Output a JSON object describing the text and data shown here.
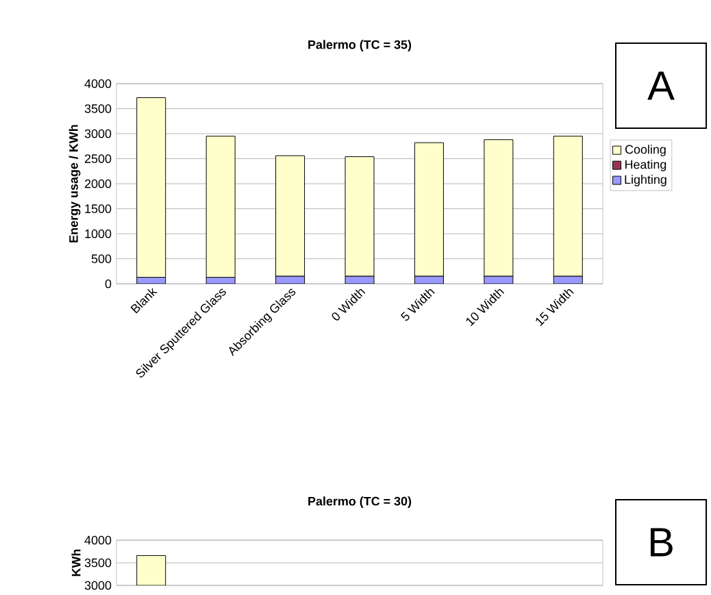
{
  "chart_data": [
    {
      "type": "bar",
      "title": "Palermo (TC = 35)",
      "ylabel": "Energy usage / KWh",
      "annotations": [
        "A"
      ],
      "categories": [
        "Blank",
        "Silver Sputtered Glass",
        "Absorbing Glass",
        "0 Width",
        "5 Width",
        "10 Width",
        "15 Width"
      ],
      "stacked": true,
      "series": [
        {
          "name": "Lighting",
          "color": "#9999ff",
          "values": [
            130,
            130,
            150,
            150,
            150,
            150,
            150
          ]
        },
        {
          "name": "Heating",
          "color": "#993355",
          "values": [
            0,
            0,
            0,
            0,
            0,
            0,
            0
          ]
        },
        {
          "name": "Cooling",
          "color": "#ffffcc",
          "values": [
            3590,
            2820,
            2410,
            2390,
            2670,
            2730,
            2800
          ]
        }
      ],
      "ylim": [
        0,
        4000
      ],
      "yticks": [
        0,
        500,
        1000,
        1500,
        2000,
        2500,
        3000,
        3500,
        4000
      ],
      "grid": "y",
      "legend": "right"
    },
    {
      "type": "bar",
      "title": "Palermo (TC = 30)",
      "ylabel": "KWh",
      "annotations": [
        "B"
      ],
      "categories": [
        null,
        null,
        null,
        null,
        null,
        null,
        null
      ],
      "series": [
        {
          "color": "#ffffcc",
          "values": [
            3660,
            null,
            null,
            null,
            null,
            null,
            null
          ]
        }
      ],
      "ylim": [
        3000,
        4000
      ],
      "yticks": [
        3000,
        3500,
        4000
      ],
      "grid": "y",
      "tick_labels": "y"
    }
  ]
}
